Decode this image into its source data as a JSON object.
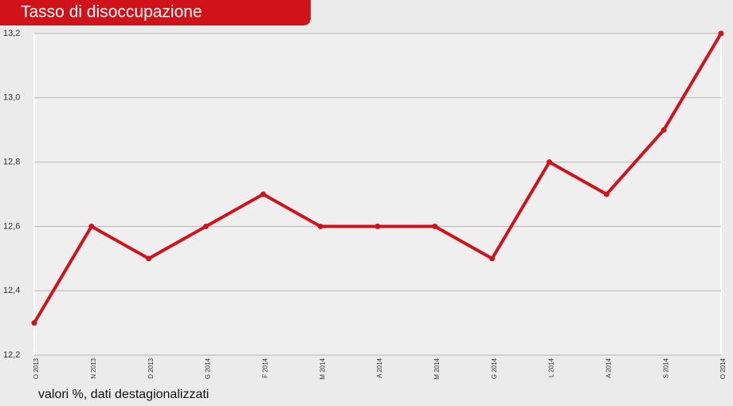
{
  "chart_data": {
    "type": "line",
    "title": "Tasso di disoccupazione",
    "subtitle": "valori %, dati destagionalizzati",
    "categories": [
      "O 2013",
      "N 2013",
      "D 2013",
      "G 2014",
      "F 2014",
      "M 2014",
      "A 2014",
      "M 2014",
      "G 2014",
      "L 2014",
      "A 2014",
      "S 2014",
      "O 2014"
    ],
    "series": [
      {
        "name": "Tasso di disoccupazione",
        "color": "#d0121b",
        "values": [
          12.3,
          12.6,
          12.5,
          12.6,
          12.7,
          12.6,
          12.6,
          12.6,
          12.5,
          12.8,
          12.7,
          12.9,
          13.2
        ]
      }
    ],
    "ylim": [
      12.2,
      13.2
    ],
    "yticks": [
      {
        "value": 12.2,
        "label": "12,2"
      },
      {
        "value": 12.4,
        "label": "12,4"
      },
      {
        "value": 12.6,
        "label": "12,6"
      },
      {
        "value": 12.8,
        "label": "12,8"
      },
      {
        "value": 13.0,
        "label": "13,0"
      },
      {
        "value": 13.2,
        "label": "13,2"
      }
    ],
    "grid": true
  }
}
